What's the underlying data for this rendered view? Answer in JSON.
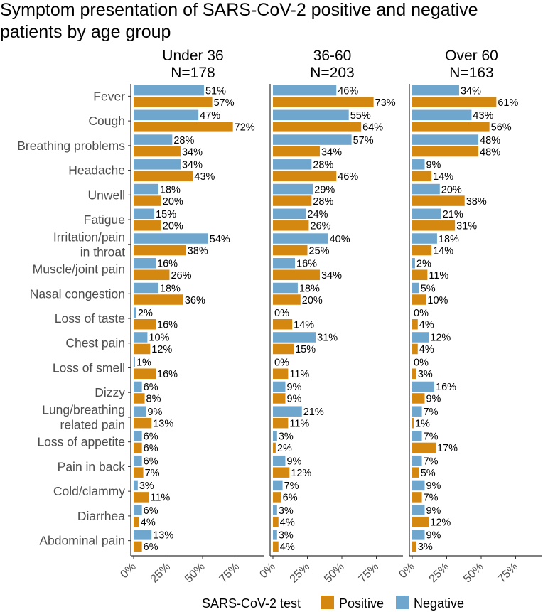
{
  "chart_data": {
    "type": "bar",
    "orientation": "horizontal",
    "title": "Symptom presentation of SARS-CoV-2 positive and negative patients by age group",
    "title_lines": [
      "Symptom presentation of SARS-CoV-2 positive and negative",
      "patients by age group"
    ],
    "categories": [
      "Fever",
      "Cough",
      "Breathing problems",
      "Headache",
      "Unwell",
      "Fatigue",
      "Irritation/pain in throat",
      "Muscle/joint pain",
      "Nasal congestion",
      "Loss of taste",
      "Chest pain",
      "Loss of smell",
      "Dizzy",
      "Lung/breathing related pain",
      "Loss of appetite",
      "Pain in back",
      "Cold/clammy",
      "Diarrhea",
      "Abdominal pain"
    ],
    "category_lines": [
      [
        "Fever"
      ],
      [
        "Cough"
      ],
      [
        "Breathing problems"
      ],
      [
        "Headache"
      ],
      [
        "Unwell"
      ],
      [
        "Fatigue"
      ],
      [
        "Irritation/pain",
        "in throat"
      ],
      [
        "Muscle/joint pain"
      ],
      [
        "Nasal congestion"
      ],
      [
        "Loss of taste"
      ],
      [
        "Chest pain"
      ],
      [
        "Loss of smell"
      ],
      [
        "Dizzy"
      ],
      [
        "Lung/breathing",
        "related pain"
      ],
      [
        "Loss of appetite"
      ],
      [
        "Pain in back"
      ],
      [
        "Cold/clammy"
      ],
      [
        "Diarrhea"
      ],
      [
        "Abdominal pain"
      ]
    ],
    "panels": [
      {
        "title_line1": "Under 36",
        "title_line2": "N=178",
        "series": [
          {
            "name": "Negative",
            "values": [
              51,
              47,
              28,
              34,
              18,
              15,
              54,
              16,
              18,
              2,
              10,
              1,
              6,
              9,
              6,
              6,
              3,
              6,
              13
            ]
          },
          {
            "name": "Positive",
            "values": [
              57,
              72,
              34,
              43,
              20,
              20,
              38,
              26,
              36,
              16,
              12,
              16,
              8,
              13,
              6,
              7,
              11,
              4,
              6
            ]
          }
        ]
      },
      {
        "title_line1": "36-60",
        "title_line2": "N=203",
        "series": [
          {
            "name": "Negative",
            "values": [
              46,
              55,
              57,
              28,
              29,
              24,
              40,
              16,
              18,
              0,
              31,
              0,
              9,
              21,
              3,
              9,
              7,
              3,
              3
            ]
          },
          {
            "name": "Positive",
            "values": [
              73,
              64,
              34,
              46,
              28,
              26,
              25,
              34,
              20,
              14,
              15,
              11,
              9,
              11,
              2,
              12,
              6,
              4,
              4
            ]
          }
        ]
      },
      {
        "title_line1": "Over 60",
        "title_line2": "N=163",
        "series": [
          {
            "name": "Negative",
            "values": [
              34,
              43,
              48,
              9,
              20,
              21,
              18,
              2,
              5,
              0,
              12,
              0,
              16,
              7,
              7,
              7,
              9,
              9,
              9
            ]
          },
          {
            "name": "Positive",
            "values": [
              61,
              56,
              48,
              14,
              38,
              31,
              14,
              11,
              10,
              4,
              4,
              3,
              9,
              1,
              17,
              5,
              7,
              12,
              3
            ]
          }
        ]
      }
    ],
    "xlim": [
      0,
      100
    ],
    "x_ticks": [
      0,
      25,
      50,
      75
    ],
    "x_tick_labels": [
      "0%",
      "25%",
      "50%",
      "75%"
    ],
    "value_suffix": "%",
    "legend": {
      "title": "SARS-CoV-2 test",
      "entries": [
        {
          "name": "Positive",
          "color": "#D4880F"
        },
        {
          "name": "Negative",
          "color": "#6EA6CD"
        }
      ],
      "position": "bottom"
    },
    "colors": {
      "Positive": "#D4880F",
      "Negative": "#6EA6CD",
      "axis": "#333333",
      "tick_text": "#4d4d4d"
    }
  }
}
